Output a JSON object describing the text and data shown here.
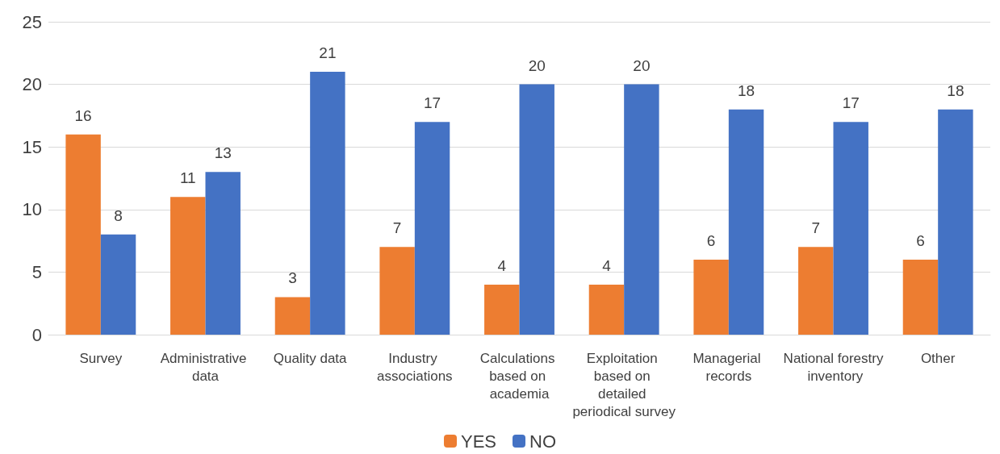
{
  "chart_data": {
    "type": "bar",
    "categories": [
      "Survey",
      "Administrative data",
      "Quality data",
      "Industry associations",
      "Calculations based on academia",
      "Exploitation based on detailed periodical survey",
      "Managerial records",
      "National forestry inventory",
      "Other"
    ],
    "series": [
      {
        "name": "YES",
        "color": "#ed7d31",
        "values": [
          16,
          11,
          3,
          7,
          4,
          4,
          6,
          7,
          6
        ]
      },
      {
        "name": "NO",
        "color": "#4472c4",
        "values": [
          8,
          13,
          21,
          17,
          20,
          20,
          18,
          17,
          18
        ]
      }
    ],
    "ylim": [
      0,
      25
    ],
    "yticks": [
      0,
      5,
      10,
      15,
      20,
      25
    ],
    "grid": "y",
    "legend": "bottom",
    "data_labels": true
  }
}
